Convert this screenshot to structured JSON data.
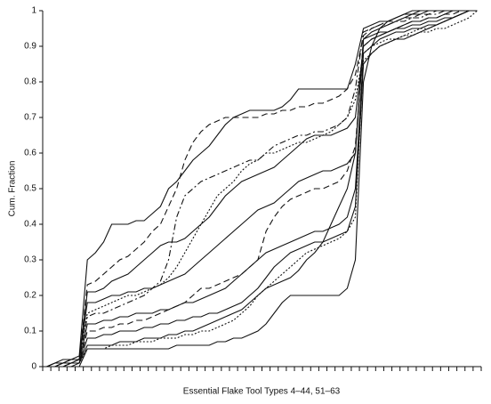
{
  "chart_data": {
    "type": "line",
    "x_label": "Essential Flake Tool Types 4–44, 51–63",
    "y_label": "Cum. Fraction",
    "categories": [
      null,
      null,
      null,
      null,
      null,
      null,
      null,
      null,
      null,
      null,
      null,
      null,
      null,
      null,
      null,
      null,
      null,
      null,
      null,
      null,
      null,
      null,
      null,
      null,
      null,
      null,
      null,
      null,
      null,
      null,
      null,
      null,
      null,
      null,
      null,
      null,
      null,
      null,
      null,
      null,
      null,
      null,
      null,
      null,
      null,
      null,
      null,
      null,
      null,
      null,
      null,
      null,
      null,
      null
    ],
    "ylim": [
      0,
      1
    ],
    "yticks": [
      0,
      0.1,
      0.2,
      0.3,
      0.4,
      0.5,
      0.6,
      0.7,
      0.8,
      0.9,
      1
    ],
    "grid": false,
    "series": [
      {
        "color": "#111",
        "dash": "solid",
        "values": [
          0,
          0.01,
          0.02,
          0.02,
          0.03,
          0.3,
          0.32,
          0.35,
          0.4,
          0.4,
          0.4,
          0.41,
          0.41,
          0.43,
          0.45,
          0.5,
          0.52,
          0.55,
          0.58,
          0.6,
          0.62,
          0.65,
          0.68,
          0.7,
          0.71,
          0.72,
          0.72,
          0.72,
          0.72,
          0.73,
          0.75,
          0.78,
          0.78,
          0.78,
          0.78,
          0.78,
          0.78,
          0.78,
          0.85,
          0.95,
          0.96,
          0.97,
          0.97,
          0.98,
          0.99,
          1,
          1,
          1,
          1,
          1,
          1,
          1,
          1,
          1
        ]
      },
      {
        "color": "#111",
        "dash": "dashed",
        "values": [
          0,
          0,
          0.01,
          0.02,
          0.02,
          0.23,
          0.24,
          0.26,
          0.28,
          0.3,
          0.31,
          0.33,
          0.35,
          0.38,
          0.4,
          0.45,
          0.5,
          0.58,
          0.63,
          0.66,
          0.68,
          0.69,
          0.7,
          0.7,
          0.7,
          0.7,
          0.7,
          0.71,
          0.71,
          0.72,
          0.72,
          0.73,
          0.73,
          0.74,
          0.74,
          0.75,
          0.76,
          0.78,
          0.82,
          0.93,
          0.95,
          0.96,
          0.97,
          0.97,
          0.98,
          0.98,
          0.99,
          0.99,
          1,
          1,
          1,
          1,
          1,
          1
        ]
      },
      {
        "color": "#111",
        "dash": "solid",
        "values": [
          0,
          0.01,
          0.01,
          0.02,
          0.02,
          0.21,
          0.21,
          0.22,
          0.24,
          0.25,
          0.26,
          0.28,
          0.3,
          0.32,
          0.34,
          0.35,
          0.35,
          0.36,
          0.38,
          0.4,
          0.42,
          0.45,
          0.48,
          0.5,
          0.52,
          0.53,
          0.54,
          0.55,
          0.56,
          0.58,
          0.6,
          0.62,
          0.64,
          0.65,
          0.65,
          0.65,
          0.66,
          0.67,
          0.7,
          0.9,
          0.92,
          0.93,
          0.94,
          0.95,
          0.96,
          0.97,
          0.97,
          0.98,
          0.98,
          0.99,
          1,
          1,
          1,
          1
        ]
      },
      {
        "color": "#111",
        "dash": "dotted",
        "values": [
          0,
          0,
          0,
          0.01,
          0.02,
          0.15,
          0.16,
          0.17,
          0.18,
          0.19,
          0.2,
          0.2,
          0.21,
          0.22,
          0.23,
          0.25,
          0.28,
          0.32,
          0.36,
          0.4,
          0.44,
          0.48,
          0.5,
          0.52,
          0.55,
          0.57,
          0.58,
          0.6,
          0.6,
          0.61,
          0.62,
          0.63,
          0.63,
          0.64,
          0.65,
          0.66,
          0.68,
          0.7,
          0.75,
          0.88,
          0.9,
          0.91,
          0.92,
          0.92,
          0.93,
          0.93,
          0.94,
          0.94,
          0.95,
          0.95,
          0.96,
          0.97,
          0.98,
          1
        ]
      },
      {
        "color": "#111",
        "dash": "solid",
        "values": [
          0,
          0,
          0.01,
          0.01,
          0.02,
          0.18,
          0.18,
          0.19,
          0.2,
          0.2,
          0.21,
          0.21,
          0.22,
          0.22,
          0.23,
          0.24,
          0.25,
          0.26,
          0.28,
          0.3,
          0.32,
          0.34,
          0.36,
          0.38,
          0.4,
          0.42,
          0.44,
          0.45,
          0.46,
          0.48,
          0.5,
          0.52,
          0.53,
          0.54,
          0.55,
          0.55,
          0.56,
          0.57,
          0.6,
          0.92,
          0.93,
          0.94,
          0.94,
          0.95,
          0.95,
          0.96,
          0.96,
          0.97,
          0.97,
          0.98,
          0.98,
          0.99,
          1,
          1
        ]
      },
      {
        "color": "#111",
        "dash": "dashdot",
        "values": [
          0,
          0.01,
          0.01,
          0.02,
          0.02,
          0.14,
          0.15,
          0.15,
          0.16,
          0.17,
          0.18,
          0.19,
          0.2,
          0.22,
          0.24,
          0.3,
          0.42,
          0.48,
          0.5,
          0.52,
          0.53,
          0.54,
          0.55,
          0.56,
          0.57,
          0.58,
          0.58,
          0.6,
          0.62,
          0.63,
          0.64,
          0.65,
          0.65,
          0.66,
          0.66,
          0.67,
          0.68,
          0.7,
          0.78,
          0.94,
          0.95,
          0.96,
          0.96,
          0.97,
          0.97,
          0.98,
          0.98,
          0.99,
          0.99,
          1,
          1,
          1,
          1,
          1
        ]
      },
      {
        "color": "#111",
        "dash": "solid",
        "values": [
          0,
          0,
          0.01,
          0.01,
          0.01,
          0.12,
          0.12,
          0.13,
          0.13,
          0.14,
          0.14,
          0.15,
          0.15,
          0.15,
          0.16,
          0.16,
          0.17,
          0.18,
          0.18,
          0.19,
          0.2,
          0.21,
          0.22,
          0.24,
          0.26,
          0.28,
          0.3,
          0.32,
          0.33,
          0.34,
          0.35,
          0.36,
          0.37,
          0.38,
          0.38,
          0.39,
          0.4,
          0.42,
          0.5,
          0.88,
          0.9,
          0.92,
          0.93,
          0.94,
          0.94,
          0.95,
          0.95,
          0.96,
          0.96,
          0.97,
          0.98,
          0.99,
          1,
          1
        ]
      },
      {
        "color": "#111",
        "dash": "dashed",
        "values": [
          0,
          0,
          0,
          0.01,
          0.01,
          0.1,
          0.1,
          0.11,
          0.11,
          0.12,
          0.12,
          0.13,
          0.13,
          0.14,
          0.15,
          0.16,
          0.17,
          0.18,
          0.2,
          0.22,
          0.22,
          0.23,
          0.24,
          0.25,
          0.26,
          0.28,
          0.3,
          0.38,
          0.42,
          0.45,
          0.47,
          0.48,
          0.49,
          0.5,
          0.5,
          0.51,
          0.52,
          0.55,
          0.62,
          0.9,
          0.92,
          0.93,
          0.94,
          0.95,
          0.96,
          0.97,
          0.97,
          0.98,
          0.98,
          0.99,
          0.99,
          1,
          1,
          1
        ]
      },
      {
        "color": "#111",
        "dash": "solid",
        "values": [
          0,
          0,
          0,
          0,
          0.01,
          0.08,
          0.08,
          0.09,
          0.09,
          0.1,
          0.1,
          0.1,
          0.11,
          0.11,
          0.12,
          0.12,
          0.13,
          0.13,
          0.14,
          0.14,
          0.15,
          0.15,
          0.16,
          0.17,
          0.18,
          0.2,
          0.22,
          0.25,
          0.28,
          0.3,
          0.32,
          0.33,
          0.34,
          0.35,
          0.35,
          0.36,
          0.37,
          0.38,
          0.45,
          0.85,
          0.88,
          0.9,
          0.91,
          0.92,
          0.92,
          0.93,
          0.94,
          0.95,
          0.96,
          0.97,
          0.98,
          0.99,
          1,
          1
        ]
      },
      {
        "color": "#111",
        "dash": "dotted",
        "values": [
          0,
          0,
          0,
          0.01,
          0.01,
          0.05,
          0.05,
          0.05,
          0.06,
          0.06,
          0.06,
          0.07,
          0.07,
          0.07,
          0.08,
          0.08,
          0.08,
          0.09,
          0.09,
          0.1,
          0.1,
          0.11,
          0.12,
          0.13,
          0.15,
          0.17,
          0.2,
          0.22,
          0.24,
          0.26,
          0.28,
          0.3,
          0.32,
          0.33,
          0.34,
          0.35,
          0.36,
          0.38,
          0.42,
          0.86,
          0.88,
          0.9,
          0.91,
          0.92,
          0.93,
          0.94,
          0.95,
          0.95,
          0.96,
          0.97,
          0.98,
          0.99,
          1,
          1
        ]
      },
      {
        "color": "#111",
        "dash": "solid",
        "values": [
          0,
          0,
          0,
          0.01,
          0.01,
          0.06,
          0.06,
          0.06,
          0.06,
          0.07,
          0.07,
          0.07,
          0.08,
          0.08,
          0.08,
          0.09,
          0.09,
          0.1,
          0.1,
          0.11,
          0.12,
          0.13,
          0.14,
          0.15,
          0.16,
          0.18,
          0.2,
          0.22,
          0.23,
          0.24,
          0.25,
          0.27,
          0.3,
          0.32,
          0.35,
          0.4,
          0.45,
          0.5,
          0.6,
          0.92,
          0.94,
          0.95,
          0.96,
          0.97,
          0.98,
          0.99,
          0.99,
          1,
          1,
          1,
          1,
          1,
          1,
          1
        ]
      },
      {
        "color": "#111",
        "dash": "solid",
        "values": [
          0,
          0,
          0,
          0,
          0,
          0.05,
          0.05,
          0.05,
          0.05,
          0.05,
          0.05,
          0.05,
          0.05,
          0.05,
          0.05,
          0.05,
          0.06,
          0.06,
          0.06,
          0.06,
          0.06,
          0.07,
          0.07,
          0.08,
          0.08,
          0.09,
          0.1,
          0.12,
          0.15,
          0.18,
          0.2,
          0.2,
          0.2,
          0.2,
          0.2,
          0.2,
          0.2,
          0.22,
          0.3,
          0.8,
          0.9,
          0.95,
          0.97,
          0.98,
          0.99,
          0.99,
          1,
          1,
          1,
          1,
          1,
          1,
          1,
          1
        ]
      }
    ]
  }
}
